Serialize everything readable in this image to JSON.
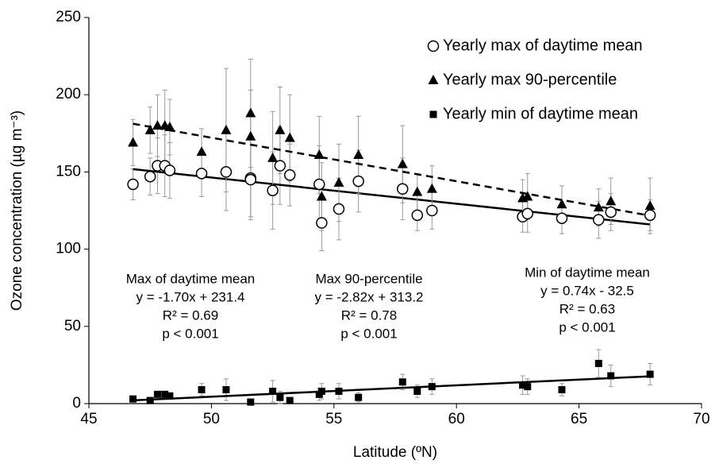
{
  "chart_data": {
    "type": "scatter",
    "x_label": "Latitude (ºN)",
    "y_label": "Ozone concentration (µg m⁻³)",
    "xlim": [
      45,
      70
    ],
    "xticks": [
      45,
      50,
      55,
      60,
      65,
      70
    ],
    "ylim": [
      0,
      250
    ],
    "yticks": [
      0,
      50,
      100,
      150,
      200,
      250
    ],
    "legend_position": "upper right",
    "series": [
      {
        "name": "Yearly max of daytime mean",
        "marker": "circle",
        "color": "#000000",
        "x": [
          46.8,
          47.5,
          47.8,
          48.1,
          48.3,
          49.6,
          50.6,
          51.6,
          51.6,
          52.5,
          52.8,
          53.2,
          54.4,
          54.5,
          55.2,
          56.0,
          57.8,
          58.4,
          59.0,
          62.7,
          62.9,
          64.3,
          65.8,
          66.3,
          67.9
        ],
        "values": [
          142,
          147,
          154,
          154,
          151,
          149,
          150,
          146,
          145,
          138,
          154,
          148,
          142,
          117,
          126,
          144,
          139,
          122,
          125,
          121,
          123,
          120,
          119,
          124,
          122
        ],
        "errors": [
          10,
          12,
          18,
          20,
          18,
          15,
          25,
          25,
          26,
          25,
          25,
          20,
          25,
          18,
          20,
          20,
          20,
          10,
          12,
          10,
          12,
          10,
          12,
          12,
          10
        ],
        "trend": {
          "x": [
            46.8,
            67.9
          ],
          "values": [
            151.8,
            116
          ],
          "dashed": false
        }
      },
      {
        "name": "Yearly max 90-percentile",
        "marker": "triangle",
        "color": "#000000",
        "x": [
          46.8,
          47.5,
          47.8,
          48.1,
          48.3,
          49.6,
          50.6,
          51.6,
          51.6,
          52.5,
          52.8,
          53.2,
          54.4,
          54.5,
          55.2,
          56.0,
          57.8,
          58.4,
          59.0,
          62.7,
          62.9,
          64.3,
          65.8,
          66.3,
          67.9
        ],
        "values": [
          169,
          177,
          180,
          180,
          179,
          163,
          177,
          188,
          173,
          159,
          177,
          172,
          161,
          134,
          143,
          161,
          155,
          137,
          139,
          133,
          134,
          129,
          127,
          131,
          128
        ],
        "errors": [
          15,
          15,
          20,
          23,
          18,
          15,
          40,
          35,
          30,
          30,
          28,
          28,
          25,
          22,
          25,
          25,
          25,
          12,
          15,
          12,
          15,
          12,
          12,
          15,
          18
        ],
        "trend": {
          "x": [
            46.8,
            67.9
          ],
          "values": [
            181.2,
            121.7
          ],
          "dashed": true
        }
      },
      {
        "name": "Yearly min of daytime mean",
        "marker": "square",
        "color": "#000000",
        "x": [
          46.8,
          47.5,
          47.8,
          48.1,
          48.3,
          49.6,
          50.6,
          51.6,
          52.5,
          52.8,
          53.2,
          54.4,
          54.5,
          55.2,
          56.0,
          57.8,
          58.4,
          59.0,
          62.7,
          62.9,
          64.3,
          65.8,
          66.3,
          67.9
        ],
        "values": [
          3,
          2,
          6,
          6,
          5,
          9,
          9,
          1,
          8,
          4,
          2,
          6,
          8,
          8,
          4,
          14,
          8,
          11,
          12,
          11,
          9,
          26,
          18,
          19
        ],
        "errors": [
          0,
          0,
          0,
          0,
          0,
          4,
          7,
          2,
          7,
          4,
          0,
          4,
          5,
          5,
          3,
          5,
          4,
          5,
          6,
          5,
          4,
          9,
          7,
          7
        ],
        "trend": {
          "x": [
            46.8,
            67.9
          ],
          "values": [
            2.1,
            17.7
          ],
          "dashed": false
        }
      }
    ],
    "annotations": [
      {
        "lines": [
          "Max of daytime mean",
          "y = -1.70x + 231.4",
          "R² = 0.69",
          "p < 0.001"
        ]
      },
      {
        "lines": [
          "Max 90-percentile",
          "y = -2.82x + 313.2",
          "R² = 0.78",
          "p < 0.001"
        ]
      },
      {
        "lines": [
          "Min of daytime mean",
          "y = 0.74x - 32.5",
          "R² = 0.63",
          "p < 0.001"
        ]
      }
    ]
  }
}
